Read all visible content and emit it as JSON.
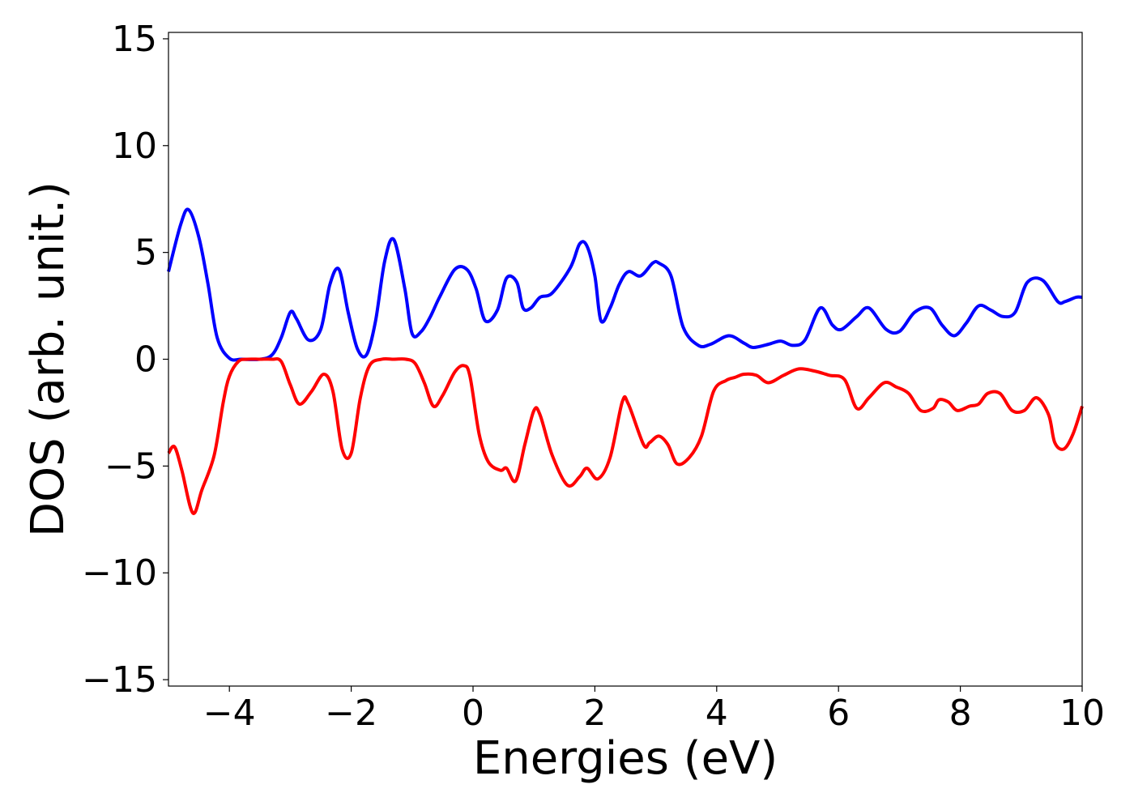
{
  "chart_data": {
    "type": "line",
    "title": "",
    "xlabel": "Energies (eV)",
    "ylabel": "DOS (arb. unit.)",
    "xlim": [
      -5,
      10
    ],
    "ylim": [
      -15.3,
      15.3
    ],
    "x_ticks": [
      -4,
      -2,
      0,
      2,
      4,
      6,
      8,
      10
    ],
    "x_tick_labels": [
      "−4",
      "−2",
      "0",
      "2",
      "4",
      "6",
      "8",
      "10"
    ],
    "y_ticks": [
      -15,
      -10,
      -5,
      0,
      5,
      10,
      15
    ],
    "y_tick_labels": [
      "−15",
      "−10",
      "−5",
      "0",
      "5",
      "10",
      "15"
    ],
    "grid": false,
    "legend": "none",
    "series": [
      {
        "color": "#0000ff",
        "x": [
          -5.0,
          -4.8,
          -4.67,
          -4.5,
          -4.35,
          -4.2,
          -4.0,
          -3.8,
          -3.5,
          -3.3,
          -3.15,
          -3.0,
          -2.9,
          -2.7,
          -2.5,
          -2.35,
          -2.2,
          -2.05,
          -1.9,
          -1.75,
          -1.6,
          -1.45,
          -1.3,
          -1.12,
          -1.0,
          -0.85,
          -0.7,
          -0.55,
          -0.3,
          -0.1,
          0.05,
          0.2,
          0.4,
          0.55,
          0.72,
          0.82,
          0.95,
          1.1,
          1.3,
          1.6,
          1.75,
          1.87,
          2.0,
          2.1,
          2.25,
          2.4,
          2.55,
          2.75,
          2.95,
          3.05,
          3.25,
          3.45,
          3.7,
          3.9,
          4.2,
          4.45,
          4.6,
          4.85,
          5.05,
          5.25,
          5.45,
          5.7,
          5.9,
          6.05,
          6.3,
          6.5,
          6.78,
          7.0,
          7.25,
          7.5,
          7.7,
          7.9,
          8.1,
          8.3,
          8.5,
          8.7,
          8.9,
          9.1,
          9.35,
          9.6,
          9.72,
          9.9,
          10.0
        ],
        "y": [
          4.1,
          6.3,
          7.0,
          5.7,
          3.5,
          1.0,
          0.05,
          0.0,
          0.0,
          0.2,
          1.0,
          2.2,
          1.9,
          0.9,
          1.4,
          3.5,
          4.2,
          2.2,
          0.5,
          0.2,
          1.8,
          4.6,
          5.6,
          3.3,
          1.2,
          1.3,
          2.0,
          2.9,
          4.2,
          4.2,
          3.3,
          1.8,
          2.3,
          3.8,
          3.6,
          2.4,
          2.4,
          2.9,
          3.1,
          4.3,
          5.4,
          5.3,
          3.9,
          1.8,
          2.4,
          3.5,
          4.1,
          3.9,
          4.5,
          4.5,
          3.9,
          1.5,
          0.65,
          0.7,
          1.1,
          0.75,
          0.55,
          0.7,
          0.85,
          0.65,
          0.9,
          2.4,
          1.6,
          1.4,
          2.0,
          2.4,
          1.4,
          1.3,
          2.2,
          2.4,
          1.6,
          1.1,
          1.7,
          2.5,
          2.3,
          2.0,
          2.2,
          3.6,
          3.7,
          2.7,
          2.7,
          2.9,
          2.9
        ]
      },
      {
        "color": "#ff0000",
        "x": [
          -5.0,
          -4.9,
          -4.78,
          -4.6,
          -4.45,
          -4.25,
          -4.1,
          -4.0,
          -3.85,
          -3.7,
          -3.5,
          -3.3,
          -3.15,
          -3.0,
          -2.85,
          -2.65,
          -2.45,
          -2.3,
          -2.15,
          -2.0,
          -1.85,
          -1.7,
          -1.5,
          -1.3,
          -1.1,
          -0.95,
          -0.8,
          -0.65,
          -0.5,
          -0.3,
          -0.15,
          -0.05,
          0.1,
          0.25,
          0.45,
          0.55,
          0.7,
          0.85,
          1.0,
          1.1,
          1.3,
          1.55,
          1.75,
          1.87,
          2.05,
          2.25,
          2.45,
          2.55,
          2.8,
          2.9,
          3.05,
          3.2,
          3.35,
          3.55,
          3.75,
          3.95,
          4.15,
          4.3,
          4.45,
          4.65,
          4.85,
          5.1,
          5.35,
          5.6,
          5.85,
          6.1,
          6.3,
          6.5,
          6.75,
          6.95,
          7.15,
          7.35,
          7.55,
          7.65,
          7.8,
          7.95,
          8.15,
          8.3,
          8.45,
          8.65,
          8.85,
          9.05,
          9.25,
          9.45,
          9.55,
          9.7,
          9.85,
          10.0
        ],
        "y": [
          -4.4,
          -4.1,
          -5.2,
          -7.2,
          -6.1,
          -4.5,
          -2.0,
          -0.8,
          -0.1,
          0.0,
          0.0,
          0.0,
          -0.1,
          -1.2,
          -2.1,
          -1.5,
          -0.7,
          -1.5,
          -4.2,
          -4.4,
          -1.8,
          -0.3,
          0.0,
          0.0,
          0.0,
          -0.2,
          -1.1,
          -2.2,
          -1.7,
          -0.6,
          -0.3,
          -0.8,
          -3.5,
          -4.8,
          -5.2,
          -5.1,
          -5.7,
          -4.0,
          -2.4,
          -2.6,
          -4.5,
          -5.9,
          -5.5,
          -5.1,
          -5.6,
          -4.6,
          -2.0,
          -2.1,
          -4.0,
          -3.9,
          -3.6,
          -4.0,
          -4.9,
          -4.6,
          -3.6,
          -1.5,
          -1.0,
          -0.85,
          -0.7,
          -0.75,
          -1.1,
          -0.75,
          -0.45,
          -0.55,
          -0.75,
          -0.95,
          -2.3,
          -1.8,
          -1.1,
          -1.3,
          -1.6,
          -2.4,
          -2.3,
          -1.9,
          -2.0,
          -2.4,
          -2.2,
          -2.1,
          -1.6,
          -1.6,
          -2.4,
          -2.4,
          -1.8,
          -2.6,
          -3.9,
          -4.2,
          -3.5,
          -2.2
        ]
      }
    ]
  }
}
